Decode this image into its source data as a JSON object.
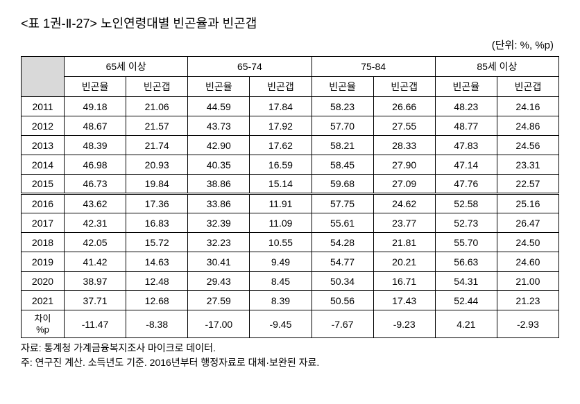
{
  "title": "<표 1권-Ⅱ-27> 노인연령대별 빈곤율과 빈곤갭",
  "unit": "(단위: %, %p)",
  "header": {
    "groups": [
      "65세 이상",
      "65-74",
      "75-84",
      "85세 이상"
    ],
    "sub": [
      "빈곤율",
      "빈곤갭"
    ]
  },
  "rows": [
    {
      "year": "2011",
      "vals": [
        "49.18",
        "21.06",
        "44.59",
        "17.84",
        "58.23",
        "26.66",
        "48.23",
        "24.16"
      ]
    },
    {
      "year": "2012",
      "vals": [
        "48.67",
        "21.57",
        "43.73",
        "17.92",
        "57.70",
        "27.55",
        "48.77",
        "24.86"
      ]
    },
    {
      "year": "2013",
      "vals": [
        "48.39",
        "21.74",
        "42.90",
        "17.62",
        "58.21",
        "28.33",
        "47.83",
        "24.56"
      ]
    },
    {
      "year": "2014",
      "vals": [
        "46.98",
        "20.93",
        "40.35",
        "16.59",
        "58.45",
        "27.90",
        "47.14",
        "23.31"
      ]
    },
    {
      "year": "2015",
      "vals": [
        "46.73",
        "19.84",
        "38.86",
        "15.14",
        "59.68",
        "27.09",
        "47.76",
        "22.57"
      ]
    },
    {
      "year": "2016",
      "vals": [
        "43.62",
        "17.36",
        "33.86",
        "11.91",
        "57.75",
        "24.62",
        "52.58",
        "25.16"
      ],
      "sep": true
    },
    {
      "year": "2017",
      "vals": [
        "42.31",
        "16.83",
        "32.39",
        "11.09",
        "55.61",
        "23.77",
        "52.73",
        "26.47"
      ]
    },
    {
      "year": "2018",
      "vals": [
        "42.05",
        "15.72",
        "32.23",
        "10.55",
        "54.28",
        "21.81",
        "55.70",
        "24.50"
      ]
    },
    {
      "year": "2019",
      "vals": [
        "41.42",
        "14.63",
        "30.41",
        "9.49",
        "54.77",
        "20.21",
        "56.63",
        "24.60"
      ]
    },
    {
      "year": "2020",
      "vals": [
        "38.97",
        "12.48",
        "29.43",
        "8.45",
        "50.34",
        "16.71",
        "54.31",
        "21.00"
      ]
    },
    {
      "year": "2021",
      "vals": [
        "37.71",
        "12.68",
        "27.59",
        "8.39",
        "50.56",
        "17.43",
        "52.44",
        "21.23"
      ]
    }
  ],
  "diff": {
    "label_line1": "차이",
    "label_line2": "%p",
    "vals": [
      "-11.47",
      "-8.38",
      "-17.00",
      "-9.45",
      "-7.67",
      "-9.23",
      "4.21",
      "-2.93"
    ]
  },
  "notes": {
    "source": "자료: 통계청 가계금융복지조사 마이크로 데이터.",
    "note": "주: 연구진 계산. 소득년도 기준. 2016년부터 행정자료로 대체·보완된 자료."
  },
  "style": {
    "header_corner_bg": "#d9d9d9",
    "border_color": "#000000",
    "font_family": "Malgun Gothic",
    "title_fontsize": 18,
    "body_fontsize": 14,
    "col_widths_pct": [
      8,
      11.5,
      11.5,
      11.5,
      11.5,
      11.5,
      11.5,
      11.5,
      11.5
    ]
  }
}
